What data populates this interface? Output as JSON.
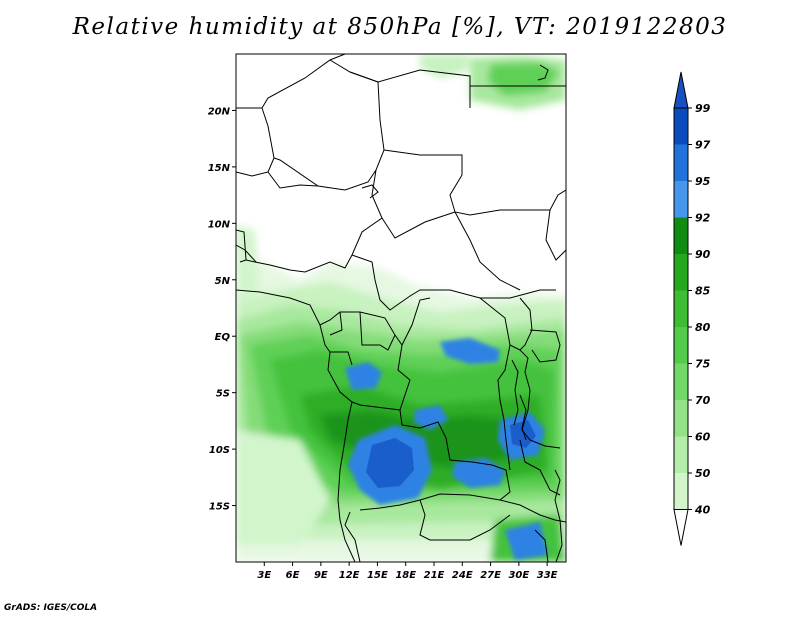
{
  "title": "Relative humidity at 850hPa [%], VT: 2019122803",
  "footer": "GrADS: IGES/COLA",
  "map": {
    "lon_range": [
      0,
      35
    ],
    "lat_range": [
      -20,
      25
    ],
    "lat_ticks": [
      {
        "value": 20,
        "label": "20N"
      },
      {
        "value": 15,
        "label": "15N"
      },
      {
        "value": 10,
        "label": "10N"
      },
      {
        "value": 5,
        "label": "5N"
      },
      {
        "value": 0,
        "label": "EQ"
      },
      {
        "value": -5,
        "label": "5S"
      },
      {
        "value": -10,
        "label": "10S"
      },
      {
        "value": -15,
        "label": "15S"
      }
    ],
    "lon_ticks": [
      {
        "value": 3,
        "label": "3E"
      },
      {
        "value": 6,
        "label": "6E"
      },
      {
        "value": 9,
        "label": "9E"
      },
      {
        "value": 12,
        "label": "12E"
      },
      {
        "value": 15,
        "label": "15E"
      },
      {
        "value": 18,
        "label": "18E"
      },
      {
        "value": 21,
        "label": "21E"
      },
      {
        "value": 24,
        "label": "24E"
      },
      {
        "value": 27,
        "label": "27E"
      },
      {
        "value": 30,
        "label": "30E"
      },
      {
        "value": 33,
        "label": "33E"
      }
    ]
  },
  "colorbar": {
    "levels": [
      "40",
      "50",
      "60",
      "70",
      "75",
      "80",
      "85",
      "90",
      "92",
      "95",
      "97",
      "99"
    ],
    "colors": [
      "#eafae6",
      "#d2f5cc",
      "#b4edaa",
      "#94e288",
      "#72d868",
      "#52cc4a",
      "#3cbd34",
      "#23a81e",
      "#118c12",
      "#4696ec",
      "#2272dc",
      "#0a4cbc"
    ],
    "below_color": "#ffffff",
    "above_color": "#1650c2"
  }
}
